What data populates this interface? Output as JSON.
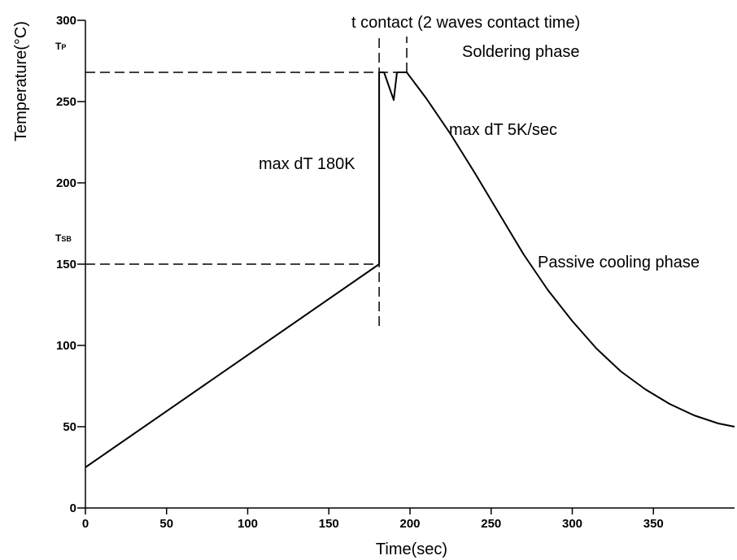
{
  "chart_data": {
    "type": "line",
    "xlabel": "Time(sec)",
    "ylabel": "Temperature(°C)",
    "xlim": [
      0,
      400
    ],
    "ylim": [
      0,
      300
    ],
    "x_ticks": [
      0,
      50,
      100,
      150,
      200,
      250,
      300,
      350
    ],
    "y_ticks": [
      0,
      50,
      100,
      150,
      200,
      250,
      300
    ],
    "grid": false,
    "series": [
      {
        "points": [
          [
            0,
            25
          ],
          [
            181,
            150
          ],
          [
            181,
            268
          ],
          [
            184,
            268
          ],
          [
            190,
            251
          ],
          [
            192,
            268
          ],
          [
            198,
            268
          ],
          [
            210,
            252
          ],
          [
            225,
            230
          ],
          [
            240,
            206
          ],
          [
            255,
            181
          ],
          [
            270,
            156
          ],
          [
            285,
            134
          ],
          [
            300,
            115
          ],
          [
            315,
            98
          ],
          [
            330,
            84
          ],
          [
            345,
            73
          ],
          [
            360,
            64
          ],
          [
            375,
            57
          ],
          [
            390,
            52
          ],
          [
            400,
            50
          ]
        ]
      }
    ],
    "reference_lines": [
      {
        "label_main": "T",
        "label_sub": "P",
        "y": 268
      },
      {
        "label_main": "T",
        "label_sub": "SB",
        "y": 150
      }
    ],
    "vertical_markers": [
      {
        "x": 181,
        "y_from": 112,
        "y_to": 290
      },
      {
        "x": 198,
        "y_from": 268,
        "y_to": 290
      }
    ],
    "annotations": [
      {
        "id": "contact",
        "text": "t  contact  (2 waves contact time)"
      },
      {
        "id": "soldering",
        "text": "Soldering phase"
      },
      {
        "id": "max180",
        "text": "max dT 180K"
      },
      {
        "id": "max5",
        "text": "max dT 5K/sec"
      },
      {
        "id": "cooling",
        "text": "Passive cooling phase"
      }
    ]
  }
}
